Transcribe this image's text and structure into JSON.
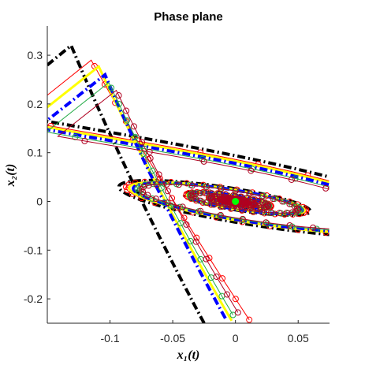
{
  "chart_data": {
    "type": "line",
    "title": "Phase plane",
    "xlabel": "x₁(t)",
    "ylabel": "x₂(t)",
    "xlim": [
      -0.15,
      0.075
    ],
    "ylim": [
      -0.25,
      0.36
    ],
    "xticks": [
      "-0.1",
      "-0.05",
      "0",
      "0.05"
    ],
    "xtick_values": [
      -0.1,
      -0.05,
      0,
      0.05
    ],
    "yticks": [
      "0.3",
      "0.2",
      "0.1",
      "0",
      "-0.1",
      "-0.2"
    ],
    "ytick_values": [
      0.3,
      0.2,
      0.1,
      0,
      -0.1,
      -0.2
    ],
    "grid": false,
    "equilibrium": {
      "x": 0,
      "y": 0,
      "color": "#00ff00"
    },
    "series": [
      {
        "style": "dash-dot",
        "color": "#000000",
        "start": [
          -0.131,
          0.32
        ],
        "tail_end": [
          -0.025,
          -0.25
        ],
        "inner_start": [
          -0.092,
          0.062
        ]
      },
      {
        "style": "circle-markers",
        "color": "#ff0000",
        "start": [
          -0.115,
          0.29
        ],
        "tail_end": [
          0.011,
          -0.243
        ],
        "inner_start": [
          -0.085,
          0.055
        ]
      },
      {
        "style": "line",
        "color": "#ffff00",
        "start": [
          -0.109,
          0.277
        ],
        "tail_end": [
          -0.003,
          -0.245
        ],
        "inner_start": [
          -0.078,
          0.05
        ]
      },
      {
        "style": "dash-dot",
        "color": "#0000ff",
        "start": [
          -0.104,
          0.26
        ],
        "tail_end": [
          -0.008,
          -0.24
        ],
        "inner_start": [
          -0.07,
          0.045
        ]
      },
      {
        "style": "circle-markers",
        "color": "#22aa44",
        "start": [
          -0.101,
          0.244
        ],
        "tail_end": [
          -0.002,
          -0.233
        ],
        "inner_start": [
          -0.066,
          0.042
        ]
      },
      {
        "style": "circle-markers",
        "color": "#b00020",
        "start": [
          -0.095,
          0.228
        ],
        "tail_end": [
          0.002,
          -0.228
        ],
        "inner_start": [
          -0.062,
          0.038
        ]
      }
    ]
  }
}
